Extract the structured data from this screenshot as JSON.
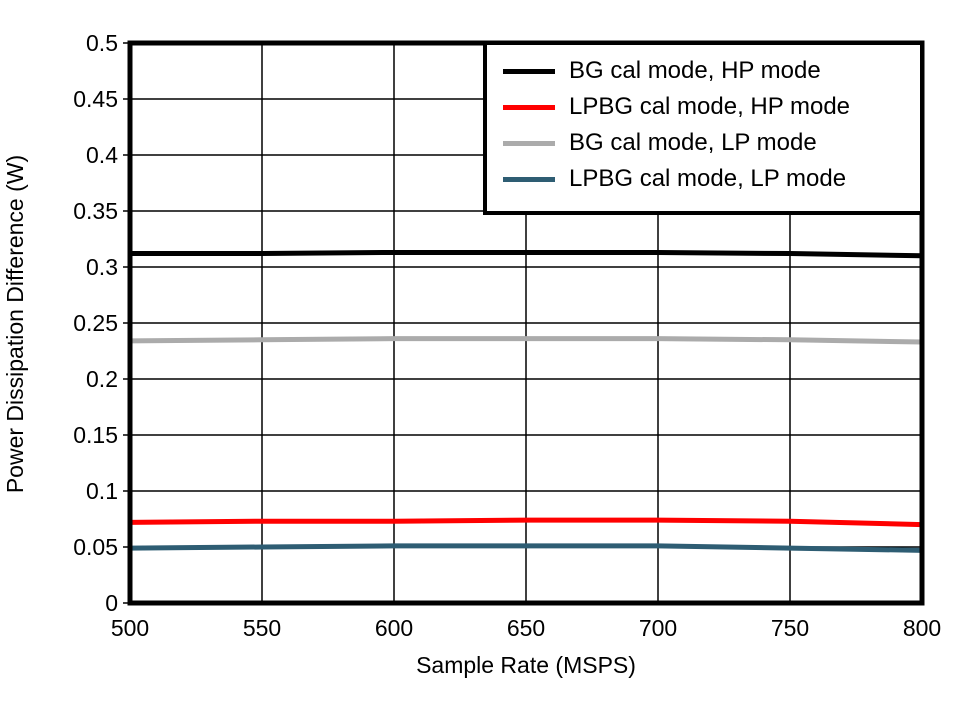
{
  "figure": {
    "background_color": "#FFFFFF",
    "frame_color": "#000000",
    "gridline_color": "#000000"
  },
  "chart_data": {
    "type": "line",
    "title": "",
    "xlabel": "Sample Rate (MSPS)",
    "ylabel": "Power Dissipation Difference (W)",
    "xlim": [
      500,
      800
    ],
    "ylim": [
      0,
      0.5
    ],
    "grid": true,
    "legend_position": "top-right",
    "x": [
      500,
      550,
      600,
      650,
      700,
      750,
      800
    ],
    "xticks": [
      500,
      550,
      600,
      650,
      700,
      750,
      800
    ],
    "xtick_labels": [
      "500",
      "550",
      "600",
      "650",
      "700",
      "750",
      "800"
    ],
    "yticks": [
      0,
      0.05,
      0.1,
      0.15,
      0.2,
      0.25,
      0.3,
      0.35,
      0.4,
      0.45,
      0.5
    ],
    "ytick_labels": [
      "0",
      "0.05",
      "0.1",
      "0.15",
      "0.2",
      "0.25",
      "0.3",
      "0.35",
      "0.4",
      "0.45",
      "0.5"
    ],
    "series": [
      {
        "name": "BG cal mode, HP mode",
        "color": "#000000",
        "values": [
          0.312,
          0.312,
          0.313,
          0.313,
          0.313,
          0.312,
          0.31
        ]
      },
      {
        "name": "LPBG cal mode, HP mode",
        "color": "#FF0000",
        "values": [
          0.072,
          0.073,
          0.073,
          0.074,
          0.074,
          0.073,
          0.07
        ]
      },
      {
        "name": "BG cal mode, LP mode",
        "color": "#ABABAB",
        "values": [
          0.234,
          0.235,
          0.236,
          0.236,
          0.236,
          0.235,
          0.233
        ]
      },
      {
        "name": "LPBG cal mode, LP mode",
        "color": "#2E5D73",
        "values": [
          0.049,
          0.05,
          0.051,
          0.051,
          0.051,
          0.049,
          0.047
        ]
      }
    ]
  }
}
